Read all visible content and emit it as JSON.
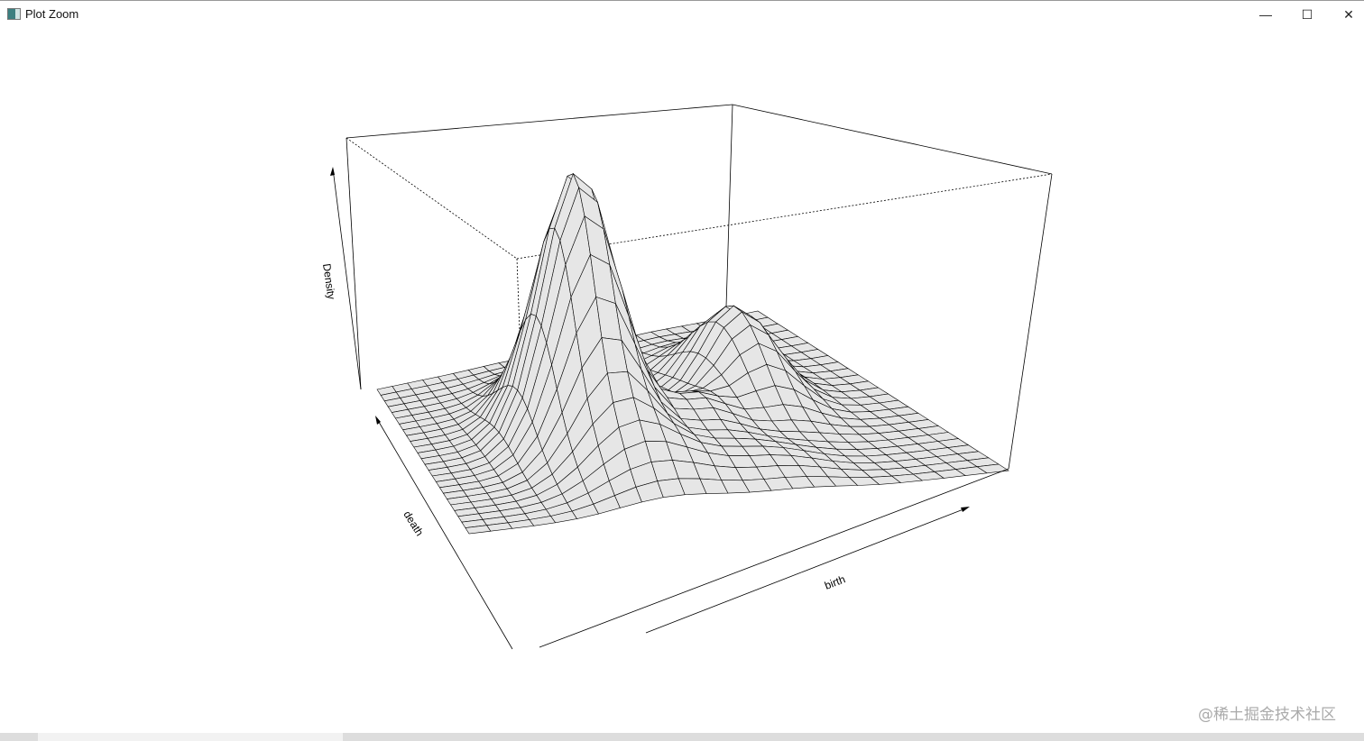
{
  "window": {
    "title": "Plot Zoom",
    "minimize_icon": "minimize-icon",
    "maximize_icon": "maximize-icon",
    "close_icon": "close-icon"
  },
  "watermark": "@稀土掘金技术社区",
  "chart_data": {
    "type": "surface",
    "title": "",
    "xlabel": "birth",
    "ylabel": "death",
    "zlabel": "Density",
    "ticks": "none",
    "surface_color": "#e6e6e6",
    "line_color": "#000000"
  }
}
